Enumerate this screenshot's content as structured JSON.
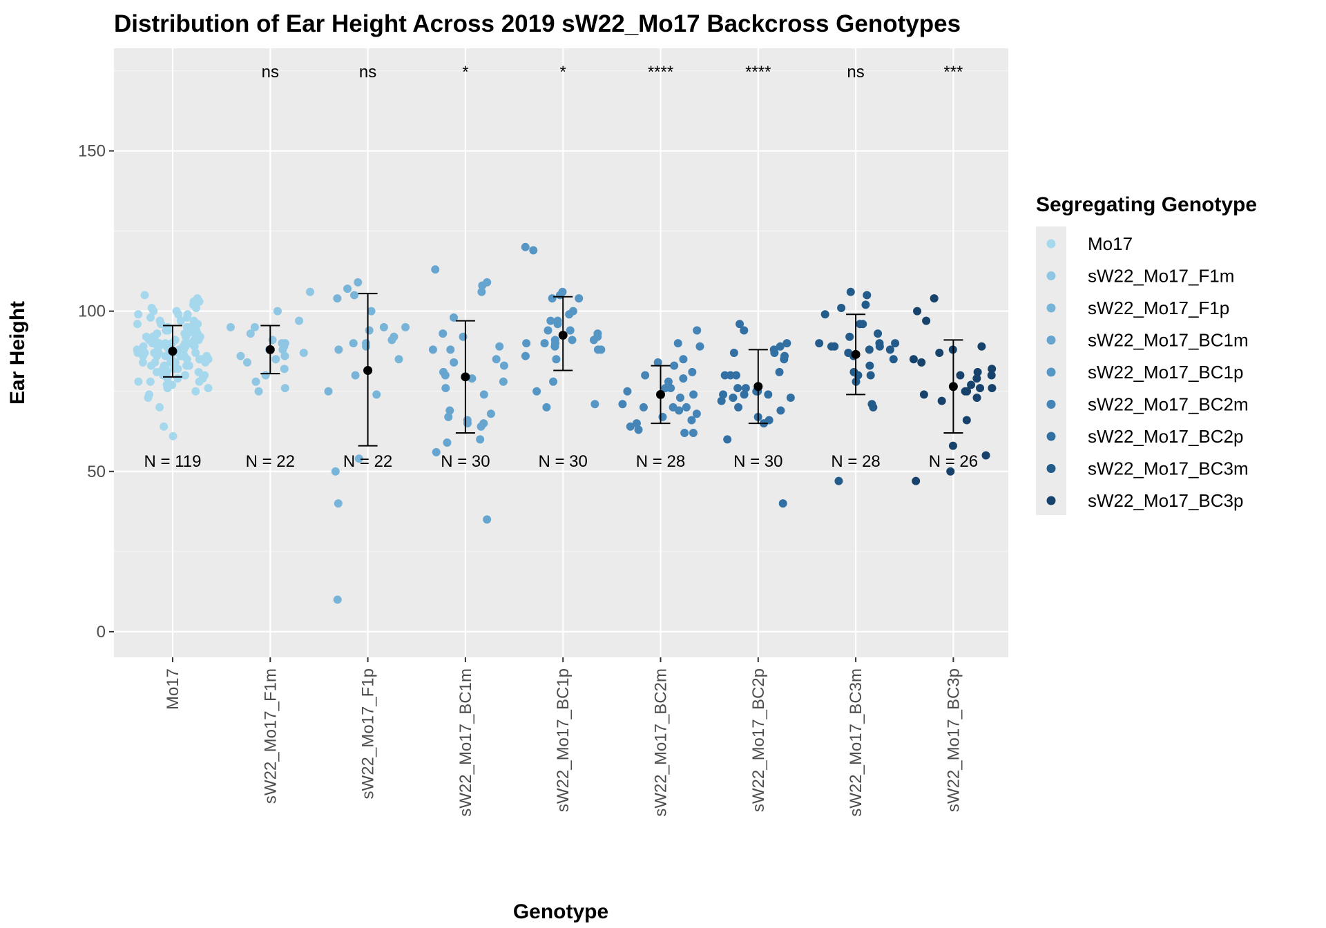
{
  "chart_data": {
    "type": "scatter",
    "title": "Distribution of Ear Height Across 2019 sW22_Mo17 Backcross Genotypes",
    "xlabel": "Genotype",
    "ylabel": "Ear Height",
    "ylim": [
      -8,
      182
    ],
    "yticks": [
      0,
      50,
      100,
      150
    ],
    "grid": true,
    "legend_title": "Segregating Genotype",
    "legend_position": "right",
    "summary_color": "#000000",
    "groups": [
      {
        "name": "Mo17",
        "color": "#a6d8ed",
        "n_label": "N = 119",
        "sig": "",
        "mean": 87.5,
        "sd_low": 79.5,
        "sd_high": 95.5,
        "points": [
          88,
          87,
          86,
          85,
          89,
          90,
          91,
          92,
          93,
          94,
          95,
          96,
          97,
          98,
          99,
          100,
          101,
          102,
          103,
          104,
          105,
          84,
          83,
          82,
          81,
          80,
          79,
          78,
          77,
          76,
          75,
          74,
          73,
          70,
          64,
          61,
          86,
          88,
          90,
          92,
          94,
          85,
          87,
          89,
          91,
          93,
          95,
          87,
          88,
          89,
          90,
          86,
          85,
          84,
          83,
          82,
          81,
          80,
          79,
          78,
          91,
          92,
          93,
          88,
          87,
          86,
          89,
          90,
          91,
          85,
          84,
          96,
          97,
          98,
          99,
          100,
          88,
          87,
          86,
          89,
          90,
          84,
          83,
          82,
          85,
          86,
          87,
          88,
          89,
          90,
          91,
          92,
          93,
          94,
          76,
          77,
          78,
          79,
          80,
          81,
          82,
          83,
          84,
          85,
          86,
          87,
          88,
          89,
          90,
          91,
          92,
          93,
          94,
          95,
          96,
          97,
          99,
          101,
          103
        ]
      },
      {
        "name": "sW22_Mo17_F1m",
        "color": "#8fc6e3",
        "n_label": "N = 22",
        "sig": "ns",
        "mean": 88,
        "sd_low": 80.5,
        "sd_high": 95.5,
        "points": [
          106,
          100,
          97,
          95,
          95,
          93,
          91,
          90,
          90,
          89,
          88,
          88,
          87,
          86,
          86,
          85,
          84,
          82,
          80,
          78,
          76,
          75
        ]
      },
      {
        "name": "sW22_Mo17_F1p",
        "color": "#78b4d8",
        "n_label": "N = 22",
        "sig": "ns",
        "mean": 81.5,
        "sd_low": 58,
        "sd_high": 105.5,
        "points": [
          109,
          107,
          105,
          104,
          100,
          95,
          95,
          94,
          92,
          91,
          90,
          90,
          89,
          88,
          85,
          80,
          75,
          74,
          54,
          50,
          40,
          10
        ]
      },
      {
        "name": "sW22_Mo17_BC1m",
        "color": "#65a5cf",
        "n_label": "N = 30",
        "sig": "*",
        "mean": 79.5,
        "sd_low": 62,
        "sd_high": 97,
        "points": [
          113,
          109,
          108,
          106,
          98,
          93,
          92,
          89,
          88,
          88,
          85,
          84,
          83,
          81,
          80,
          79,
          78,
          76,
          74,
          69,
          68,
          67,
          66,
          65,
          65,
          64,
          60,
          59,
          56,
          35
        ]
      },
      {
        "name": "sW22_Mo17_BC1p",
        "color": "#5596c5",
        "n_label": "N = 30",
        "sig": "*",
        "mean": 92.5,
        "sd_low": 81.5,
        "sd_high": 104.5,
        "points": [
          120,
          119,
          106,
          105,
          104,
          104,
          100,
          99,
          97,
          97,
          96,
          94,
          94,
          93,
          92,
          91,
          91,
          91,
          90,
          90,
          90,
          89,
          88,
          88,
          86,
          85,
          78,
          75,
          71,
          70
        ]
      },
      {
        "name": "sW22_Mo17_BC2m",
        "color": "#4484b6",
        "n_label": "N = 28",
        "sig": "****",
        "mean": 74,
        "sd_low": 65,
        "sd_high": 83,
        "points": [
          94,
          90,
          89,
          85,
          84,
          83,
          81,
          80,
          79,
          78,
          76,
          76,
          75,
          74,
          73,
          71,
          70,
          70,
          70,
          69,
          68,
          67,
          66,
          65,
          64,
          63,
          62,
          62
        ]
      },
      {
        "name": "sW22_Mo17_BC2p",
        "color": "#326fa2",
        "n_label": "N = 30",
        "sig": "****",
        "mean": 76.5,
        "sd_low": 65,
        "sd_high": 88,
        "points": [
          96,
          94,
          90,
          89,
          88,
          87,
          87,
          86,
          85,
          81,
          80,
          80,
          80,
          76,
          76,
          75,
          75,
          74,
          74,
          74,
          73,
          73,
          72,
          70,
          69,
          67,
          66,
          65,
          60,
          40
        ]
      },
      {
        "name": "sW22_Mo17_BC3m",
        "color": "#235b8a",
        "n_label": "N = 28",
        "sig": "ns",
        "mean": 86.5,
        "sd_low": 74,
        "sd_high": 99,
        "points": [
          106,
          105,
          102,
          101,
          99,
          96,
          96,
          93,
          92,
          90,
          90,
          90,
          89,
          89,
          89,
          88,
          88,
          87,
          86,
          85,
          83,
          81,
          80,
          80,
          78,
          71,
          70,
          47
        ]
      },
      {
        "name": "sW22_Mo17_BC3p",
        "color": "#16426b",
        "n_label": "N = 26",
        "sig": "***",
        "mean": 76.5,
        "sd_low": 62,
        "sd_high": 91,
        "points": [
          104,
          100,
          97,
          89,
          88,
          87,
          85,
          84,
          82,
          81,
          80,
          80,
          79,
          77,
          76,
          76,
          75,
          75,
          74,
          73,
          72,
          66,
          58,
          55,
          50,
          47
        ]
      }
    ]
  }
}
